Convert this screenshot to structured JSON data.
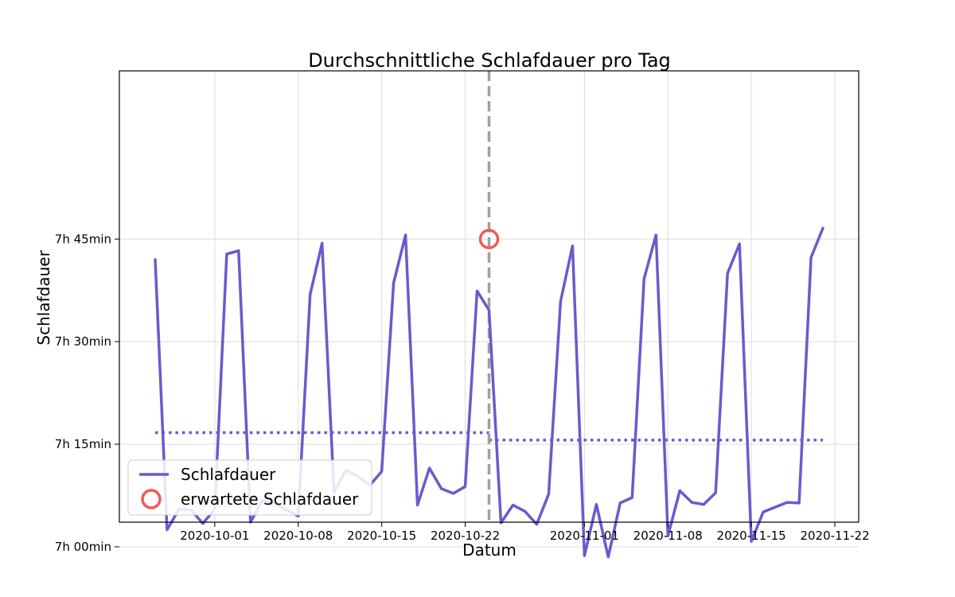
{
  "chart_data": {
    "type": "line",
    "title": "Durchschnittliche Schlafdauer pro Tag",
    "xlabel": "Datum",
    "ylabel": "Schlafdauer",
    "x_type": "date",
    "xlim": [
      "2020-09-23",
      "2020-11-24"
    ],
    "ylim_minutes": [
      423.6,
      489.6
    ],
    "x_ticks": [
      {
        "date": "2020-10-01",
        "label": "2020-10-01"
      },
      {
        "date": "2020-10-08",
        "label": "2020-10-08"
      },
      {
        "date": "2020-10-15",
        "label": "2020-10-15"
      },
      {
        "date": "2020-10-22",
        "label": "2020-10-22"
      },
      {
        "date": "2020-11-01",
        "label": "2020-11-01"
      },
      {
        "date": "2020-11-08",
        "label": "2020-11-08"
      },
      {
        "date": "2020-11-15",
        "label": "2020-11-15"
      },
      {
        "date": "2020-11-22",
        "label": "2020-11-22"
      }
    ],
    "y_ticks": [
      {
        "minutes": 420,
        "label": "7h 00min"
      },
      {
        "minutes": 435,
        "label": "7h 15min"
      },
      {
        "minutes": 450,
        "label": "7h 30min"
      },
      {
        "minutes": 465,
        "label": "7h 45min"
      }
    ],
    "grid": true,
    "legend_position": "lower-left",
    "series": [
      {
        "name": "Schlafdauer",
        "color": "#6a5acd",
        "style": "solid",
        "points": [
          [
            "2020-09-26",
            462.0
          ],
          [
            "2020-09-27",
            422.5
          ],
          [
            "2020-09-28",
            425.5
          ],
          [
            "2020-09-29",
            425.4
          ],
          [
            "2020-09-30",
            423.4
          ],
          [
            "2020-10-01",
            425.5
          ],
          [
            "2020-10-02",
            462.8
          ],
          [
            "2020-10-03",
            463.3
          ],
          [
            "2020-10-04",
            423.6
          ],
          [
            "2020-10-05",
            426.8
          ],
          [
            "2020-10-06",
            426.3
          ],
          [
            "2020-10-07",
            425.4
          ],
          [
            "2020-10-08",
            424.5
          ],
          [
            "2020-10-09",
            456.9
          ],
          [
            "2020-10-10",
            464.4
          ],
          [
            "2020-10-11",
            428.0
          ],
          [
            "2020-10-12",
            431.2
          ],
          [
            "2020-10-13",
            430.3
          ],
          [
            "2020-10-14",
            429.0
          ],
          [
            "2020-10-15",
            431.0
          ],
          [
            "2020-10-16",
            458.6
          ],
          [
            "2020-10-17",
            465.6
          ],
          [
            "2020-10-18",
            426.1
          ],
          [
            "2020-10-19",
            431.5
          ],
          [
            "2020-10-20",
            428.5
          ],
          [
            "2020-10-21",
            427.8
          ],
          [
            "2020-10-22",
            428.8
          ],
          [
            "2020-10-23",
            457.4
          ],
          [
            "2020-10-24",
            454.6
          ],
          [
            "2020-10-25",
            423.5
          ],
          [
            "2020-10-26",
            426.1
          ],
          [
            "2020-10-27",
            425.2
          ],
          [
            "2020-10-28",
            423.3
          ],
          [
            "2020-10-29",
            427.7
          ],
          [
            "2020-10-30",
            455.9
          ],
          [
            "2020-10-31",
            464.0
          ],
          [
            "2020-11-01",
            418.7
          ],
          [
            "2020-11-02",
            426.2
          ],
          [
            "2020-11-03",
            418.5
          ],
          [
            "2020-11-04",
            426.4
          ],
          [
            "2020-11-05",
            427.2
          ],
          [
            "2020-11-06",
            459.2
          ],
          [
            "2020-11-07",
            465.6
          ],
          [
            "2020-11-08",
            421.6
          ],
          [
            "2020-11-09",
            428.2
          ],
          [
            "2020-11-10",
            426.5
          ],
          [
            "2020-11-11",
            426.2
          ],
          [
            "2020-11-12",
            427.9
          ],
          [
            "2020-11-13",
            460.0
          ],
          [
            "2020-11-14",
            464.3
          ],
          [
            "2020-11-15",
            420.8
          ],
          [
            "2020-11-16",
            425.1
          ],
          [
            "2020-11-17",
            425.8
          ],
          [
            "2020-11-18",
            426.5
          ],
          [
            "2020-11-19",
            426.4
          ],
          [
            "2020-11-20",
            462.3
          ],
          [
            "2020-11-21",
            466.6
          ]
        ]
      }
    ],
    "average_lines": [
      {
        "color": "#6a5acd",
        "style": "dotted",
        "x_from": "2020-09-26",
        "x_to": "2020-10-24",
        "y": 436.7
      },
      {
        "color": "#6a5acd",
        "style": "dotted",
        "x_from": "2020-10-24",
        "x_to": "2020-11-21",
        "y": 435.6
      }
    ],
    "vertical_line": {
      "x": "2020-10-24",
      "color": "#a0a0a0",
      "style": "dashed"
    },
    "marker": {
      "name": "erwartete Schlafdauer",
      "x": "2020-10-24",
      "y": 465.0,
      "color": "#f05a5a",
      "shape": "hollow-circle"
    },
    "legend": [
      {
        "label": "Schlafdauer",
        "kind": "line",
        "color": "#6a5acd"
      },
      {
        "label": "erwartete Schlafdauer",
        "kind": "hollow-circle",
        "color": "#f05a5a"
      }
    ]
  }
}
